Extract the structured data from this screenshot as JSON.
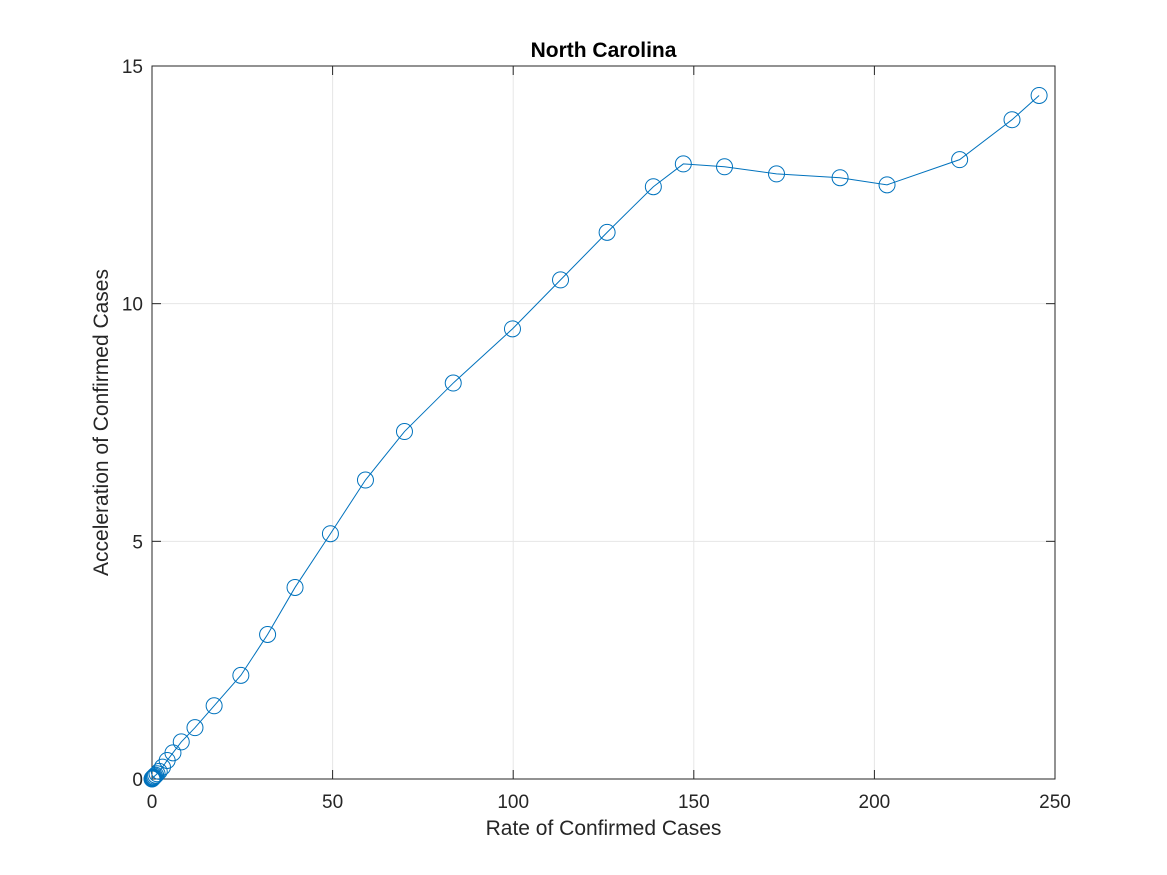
{
  "chart_data": {
    "type": "line",
    "title": "North Carolina",
    "xlabel": "Rate of Confirmed Cases",
    "ylabel": "Acceleration of Confirmed Cases",
    "xlim": [
      0,
      250
    ],
    "ylim": [
      0,
      15
    ],
    "xticks": [
      0,
      50,
      100,
      150,
      200,
      250
    ],
    "yticks": [
      0,
      5,
      10,
      15
    ],
    "xtick_labels": [
      "0",
      "50",
      "100",
      "150",
      "200",
      "250"
    ],
    "ytick_labels": [
      "0",
      "5",
      "10",
      "15"
    ],
    "grid": true,
    "marker": "circle",
    "colors": {
      "series": "#0072BD",
      "grid": "#e6e6e6",
      "axis": "#262626",
      "background": "#ffffff"
    },
    "series": [
      {
        "x": [
          0.0,
          0.1,
          0.2,
          0.3,
          0.5,
          0.7,
          1.0,
          1.4,
          2.0,
          2.9,
          4.2,
          5.8,
          8.1,
          11.9,
          17.2,
          24.6,
          32.0,
          39.6,
          49.4,
          59.1,
          69.9,
          83.4,
          99.8,
          113.1,
          126.0,
          138.8,
          147.1,
          158.5,
          172.9,
          190.5,
          203.5,
          223.6,
          238.1,
          245.6
        ],
        "y": [
          0.0,
          0.01,
          0.02,
          0.03,
          0.04,
          0.06,
          0.08,
          0.11,
          0.16,
          0.25,
          0.39,
          0.55,
          0.78,
          1.08,
          1.54,
          2.18,
          3.04,
          4.03,
          5.16,
          6.29,
          7.31,
          8.33,
          9.47,
          10.5,
          11.5,
          12.46,
          12.94,
          12.88,
          12.73,
          12.65,
          12.5,
          13.03,
          13.87,
          14.38
        ]
      }
    ]
  }
}
